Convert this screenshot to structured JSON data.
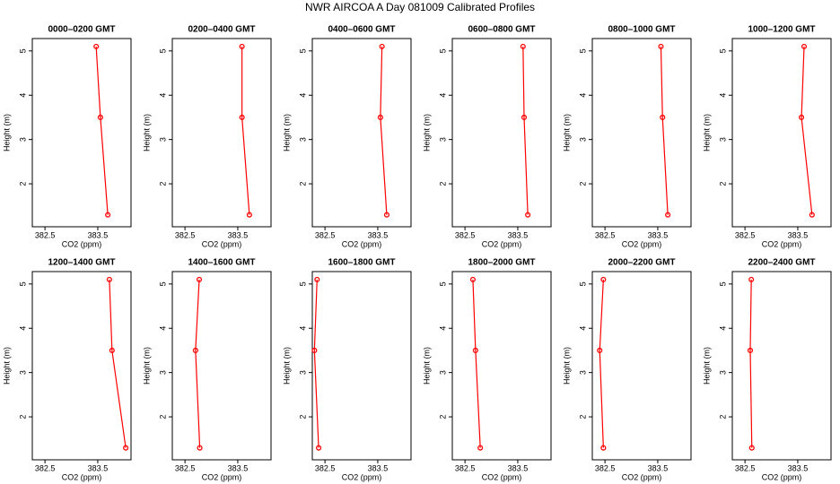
{
  "title": "NWR AIRCOA A  Day 081009  Calibrated Profiles",
  "chart_data": [
    {
      "type": "line",
      "title": "0000–0200 GMT",
      "xlabel": "CO2 (ppm)",
      "ylabel": "Height (m)",
      "x": [
        383.47,
        383.55,
        383.69
      ],
      "values": [
        5.1,
        3.5,
        1.3
      ],
      "xlim": [
        382.26,
        384.13
      ],
      "ylim": [
        1.03,
        5.28
      ],
      "xticks": [
        382.5,
        383.5
      ],
      "yticks": [
        2,
        3,
        4,
        5
      ],
      "color": "#ff0000"
    },
    {
      "type": "line",
      "title": "0200–0400 GMT",
      "xlabel": "CO2 (ppm)",
      "ylabel": "Height (m)",
      "x": [
        383.58,
        383.58,
        383.72
      ],
      "values": [
        5.1,
        3.5,
        1.3
      ],
      "xlim": [
        382.26,
        384.13
      ],
      "ylim": [
        1.03,
        5.28
      ],
      "xticks": [
        382.5,
        383.5
      ],
      "yticks": [
        2,
        3,
        4,
        5
      ],
      "color": "#ff0000"
    },
    {
      "type": "line",
      "title": "0400–0600 GMT",
      "xlabel": "CO2 (ppm)",
      "ylabel": "Height (m)",
      "x": [
        383.58,
        383.55,
        383.67
      ],
      "values": [
        5.1,
        3.5,
        1.3
      ],
      "xlim": [
        382.26,
        384.13
      ],
      "ylim": [
        1.03,
        5.28
      ],
      "xticks": [
        382.5,
        383.5
      ],
      "yticks": [
        2,
        3,
        4,
        5
      ],
      "color": "#ff0000"
    },
    {
      "type": "line",
      "title": "0600–0800 GMT",
      "xlabel": "CO2 (ppm)",
      "ylabel": "Height (m)",
      "x": [
        383.6,
        383.62,
        383.69
      ],
      "values": [
        5.1,
        3.5,
        1.3
      ],
      "xlim": [
        382.26,
        384.13
      ],
      "ylim": [
        1.03,
        5.28
      ],
      "xticks": [
        382.5,
        383.5
      ],
      "yticks": [
        2,
        3,
        4,
        5
      ],
      "color": "#ff0000"
    },
    {
      "type": "line",
      "title": "0800–1000 GMT",
      "xlabel": "CO2 (ppm)",
      "ylabel": "Height (m)",
      "x": [
        383.56,
        383.59,
        383.69
      ],
      "values": [
        5.1,
        3.5,
        1.3
      ],
      "xlim": [
        382.26,
        384.13
      ],
      "ylim": [
        1.03,
        5.28
      ],
      "xticks": [
        382.5,
        383.5
      ],
      "yticks": [
        2,
        3,
        4,
        5
      ],
      "color": "#ff0000"
    },
    {
      "type": "line",
      "title": "1000–1200 GMT",
      "xlabel": "CO2 (ppm)",
      "ylabel": "Height (m)",
      "x": [
        383.62,
        383.57,
        383.77
      ],
      "values": [
        5.1,
        3.5,
        1.3
      ],
      "xlim": [
        382.26,
        384.13
      ],
      "ylim": [
        1.03,
        5.28
      ],
      "xticks": [
        382.5,
        383.5
      ],
      "yticks": [
        2,
        3,
        4,
        5
      ],
      "color": "#ff0000"
    },
    {
      "type": "line",
      "title": "1200–1400 GMT",
      "xlabel": "CO2 (ppm)",
      "ylabel": "Height (m)",
      "x": [
        383.72,
        383.77,
        384.03
      ],
      "values": [
        5.1,
        3.5,
        1.3
      ],
      "xlim": [
        382.26,
        384.13
      ],
      "ylim": [
        1.03,
        5.28
      ],
      "xticks": [
        382.5,
        383.5
      ],
      "yticks": [
        2,
        3,
        4,
        5
      ],
      "color": "#ff0000"
    },
    {
      "type": "line",
      "title": "1400–1600 GMT",
      "xlabel": "CO2 (ppm)",
      "ylabel": "Height (m)",
      "x": [
        382.77,
        382.7,
        382.78
      ],
      "values": [
        5.1,
        3.5,
        1.3
      ],
      "xlim": [
        382.26,
        384.13
      ],
      "ylim": [
        1.03,
        5.28
      ],
      "xticks": [
        382.5,
        383.5
      ],
      "yticks": [
        2,
        3,
        4,
        5
      ],
      "color": "#ff0000"
    },
    {
      "type": "line",
      "title": "1600–1800 GMT",
      "xlabel": "CO2 (ppm)",
      "ylabel": "Height (m)",
      "x": [
        382.35,
        382.3,
        382.38
      ],
      "values": [
        5.1,
        3.5,
        1.3
      ],
      "xlim": [
        382.26,
        384.13
      ],
      "ylim": [
        1.03,
        5.28
      ],
      "xticks": [
        382.5,
        383.5
      ],
      "yticks": [
        2,
        3,
        4,
        5
      ],
      "color": "#ff0000"
    },
    {
      "type": "line",
      "title": "1800–2000 GMT",
      "xlabel": "CO2 (ppm)",
      "ylabel": "Height (m)",
      "x": [
        382.65,
        382.7,
        382.79
      ],
      "values": [
        5.1,
        3.5,
        1.3
      ],
      "xlim": [
        382.26,
        384.13
      ],
      "ylim": [
        1.03,
        5.28
      ],
      "xticks": [
        382.5,
        383.5
      ],
      "yticks": [
        2,
        3,
        4,
        5
      ],
      "color": "#ff0000"
    },
    {
      "type": "line",
      "title": "2000–2200 GMT",
      "xlabel": "CO2 (ppm)",
      "ylabel": "Height (m)",
      "x": [
        382.47,
        382.4,
        382.47
      ],
      "values": [
        5.1,
        3.5,
        1.3
      ],
      "xlim": [
        382.26,
        384.13
      ],
      "ylim": [
        1.03,
        5.28
      ],
      "xticks": [
        382.5,
        383.5
      ],
      "yticks": [
        2,
        3,
        4,
        5
      ],
      "color": "#ff0000"
    },
    {
      "type": "line",
      "title": "2200–2400 GMT",
      "xlabel": "CO2 (ppm)",
      "ylabel": "Height (m)",
      "x": [
        382.62,
        382.6,
        382.63
      ],
      "values": [
        5.1,
        3.5,
        1.3
      ],
      "xlim": [
        382.26,
        384.13
      ],
      "ylim": [
        1.03,
        5.28
      ],
      "xticks": [
        382.5,
        383.5
      ],
      "yticks": [
        2,
        3,
        4,
        5
      ],
      "color": "#ff0000"
    }
  ]
}
